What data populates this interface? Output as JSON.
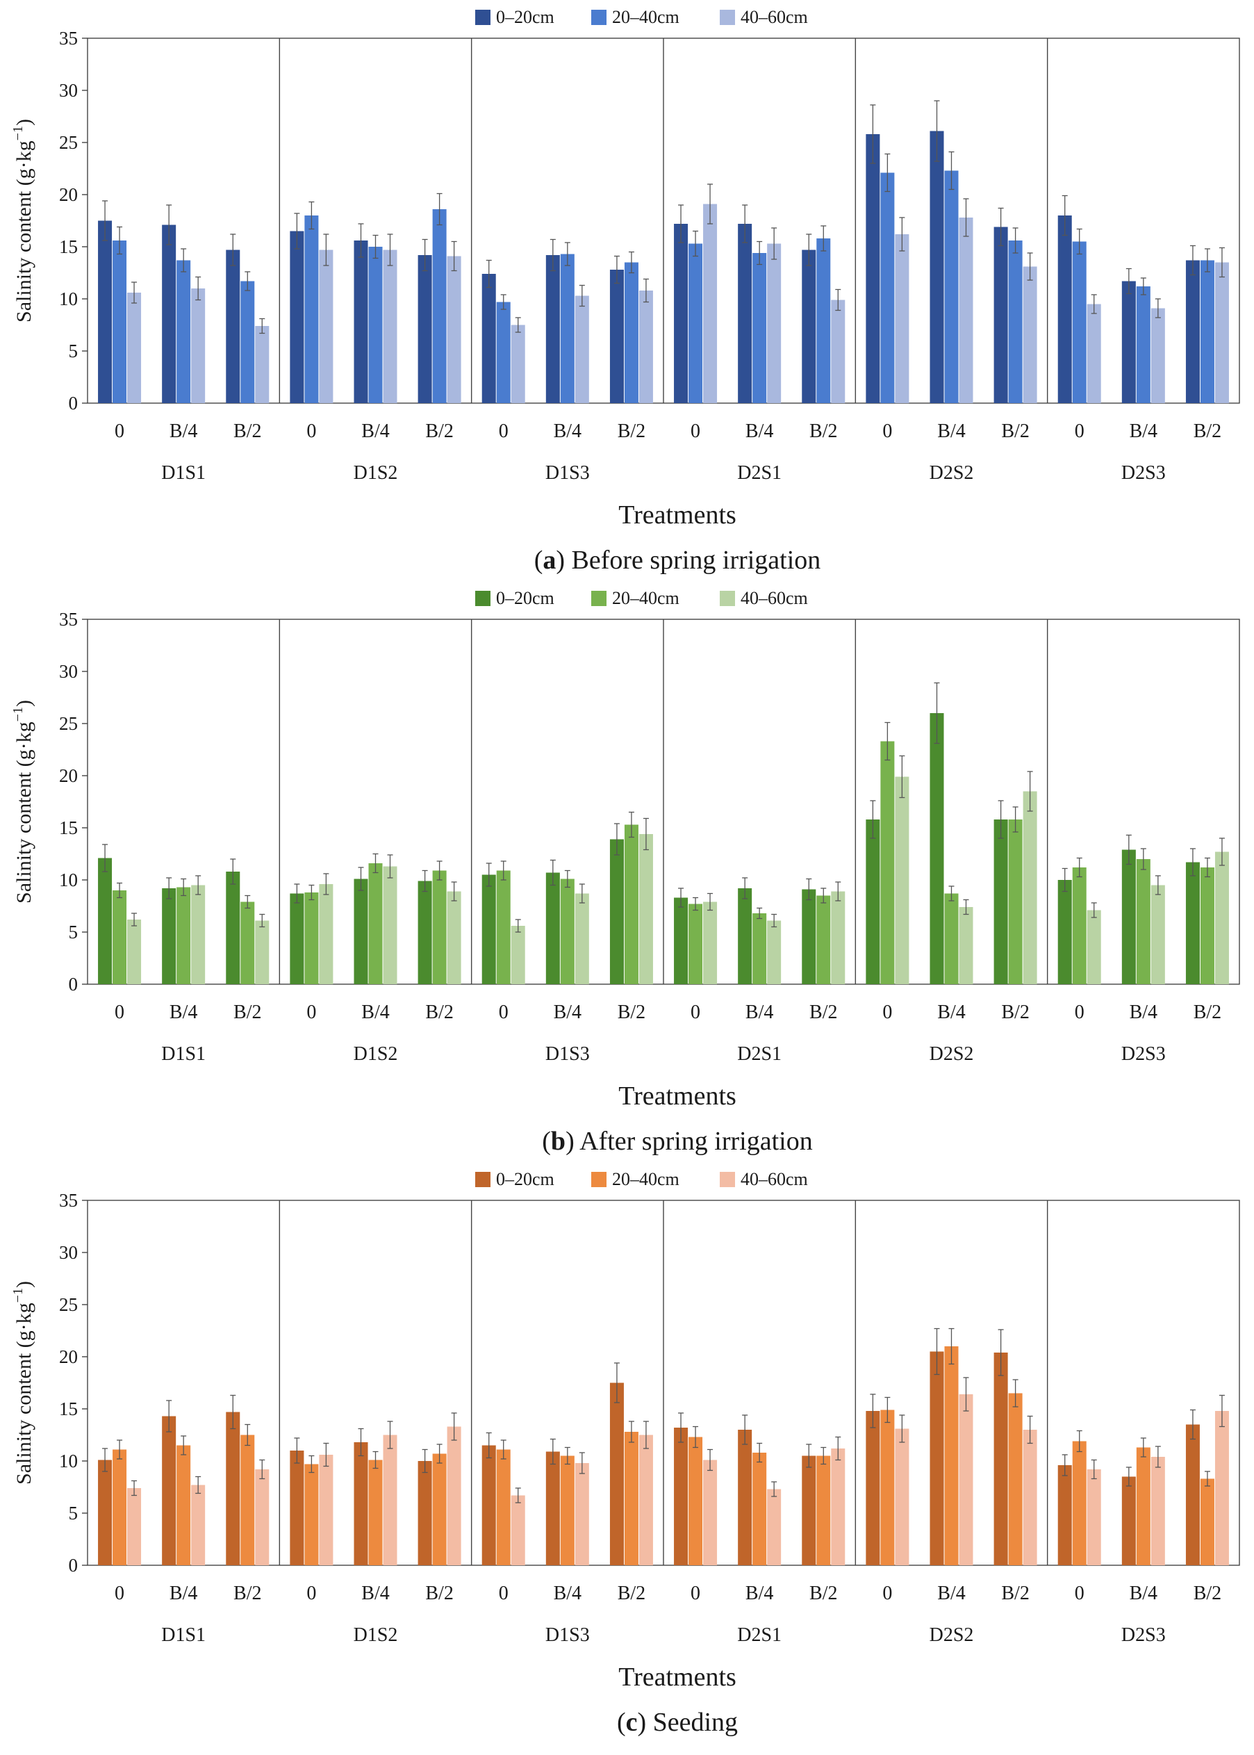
{
  "chart_data": [
    {
      "type": "bar",
      "panel_label": "a",
      "title": "Before spring irrigation",
      "xlabel": "Treatments",
      "ylabel": "Salinity content (g·kg−1)",
      "ylabel_main": "Salinity content (g·kg",
      "ylabel_sup": "−1",
      "ylabel_close": ")",
      "ylim": [
        0,
        35
      ],
      "yticks": [
        0,
        5,
        10,
        15,
        20,
        25,
        30,
        35
      ],
      "groups": [
        "D1S1",
        "D1S2",
        "D1S3",
        "D2S1",
        "D2S2",
        "D2S3"
      ],
      "subcategories": [
        "0",
        "B/4",
        "B/2"
      ],
      "series_colors": [
        "#2f4f93",
        "#4a7ccf",
        "#a9b8de"
      ],
      "series": [
        {
          "name": "0–20cm",
          "values": [
            17.5,
            17.1,
            14.7,
            16.5,
            15.6,
            14.2,
            12.4,
            14.2,
            12.8,
            17.2,
            17.2,
            14.7,
            25.8,
            26.1,
            16.9,
            18.0,
            11.7,
            13.7
          ],
          "errors": [
            1.9,
            1.9,
            1.5,
            1.7,
            1.6,
            1.5,
            1.3,
            1.5,
            1.3,
            1.8,
            1.8,
            1.5,
            2.8,
            2.9,
            1.8,
            1.9,
            1.2,
            1.4
          ]
        },
        {
          "name": "20–40cm",
          "values": [
            15.6,
            13.7,
            11.7,
            18.0,
            15.0,
            18.6,
            9.7,
            14.3,
            13.5,
            15.3,
            14.4,
            15.8,
            22.1,
            22.3,
            15.6,
            15.5,
            11.2,
            13.7
          ],
          "errors": [
            1.3,
            1.1,
            0.9,
            1.3,
            1.1,
            1.5,
            0.7,
            1.1,
            1.0,
            1.2,
            1.1,
            1.2,
            1.8,
            1.8,
            1.2,
            1.2,
            0.8,
            1.1
          ]
        },
        {
          "name": "40–60cm",
          "values": [
            10.6,
            11.0,
            7.4,
            14.7,
            14.7,
            14.1,
            7.5,
            10.3,
            10.8,
            19.1,
            15.3,
            9.9,
            16.2,
            17.8,
            13.1,
            9.5,
            9.1,
            13.5
          ],
          "errors": [
            1.0,
            1.1,
            0.7,
            1.5,
            1.5,
            1.4,
            0.7,
            1.0,
            1.1,
            1.9,
            1.5,
            1.0,
            1.6,
            1.8,
            1.3,
            0.9,
            0.9,
            1.4
          ]
        }
      ]
    },
    {
      "type": "bar",
      "panel_label": "b",
      "title": "After spring irrigation",
      "xlabel": "Treatments",
      "ylabel": "Salinity content (g·kg−1)",
      "ylabel_main": "Salinity content (g·kg",
      "ylabel_sup": "−1",
      "ylabel_close": ")",
      "ylim": [
        0,
        35
      ],
      "yticks": [
        0,
        5,
        10,
        15,
        20,
        25,
        30,
        35
      ],
      "groups": [
        "D1S1",
        "D1S2",
        "D1S3",
        "D2S1",
        "D2S2",
        "D2S3"
      ],
      "subcategories": [
        "0",
        "B/4",
        "B/2"
      ],
      "series_colors": [
        "#4b8b2e",
        "#78b24d",
        "#b9d3a4"
      ],
      "series": [
        {
          "name": "0–20cm",
          "values": [
            12.1,
            9.2,
            10.8,
            8.7,
            10.1,
            9.9,
            10.5,
            10.7,
            13.9,
            8.3,
            9.2,
            9.1,
            15.8,
            26.0,
            15.8,
            10.0,
            12.9,
            11.7
          ],
          "errors": [
            1.3,
            1.0,
            1.2,
            0.9,
            1.1,
            1.0,
            1.1,
            1.2,
            1.5,
            0.9,
            1.0,
            1.0,
            1.8,
            2.9,
            1.8,
            1.1,
            1.4,
            1.3
          ]
        },
        {
          "name": "20–40cm",
          "values": [
            9.0,
            9.3,
            7.9,
            8.8,
            11.6,
            10.9,
            10.9,
            10.1,
            15.3,
            7.7,
            6.8,
            8.5,
            23.3,
            8.7,
            15.8,
            11.2,
            12.0,
            11.2
          ],
          "errors": [
            0.7,
            0.8,
            0.6,
            0.7,
            0.9,
            0.9,
            0.9,
            0.8,
            1.2,
            0.6,
            0.5,
            0.7,
            1.8,
            0.7,
            1.2,
            0.9,
            1.0,
            0.9
          ]
        },
        {
          "name": "40–60cm",
          "values": [
            6.2,
            9.5,
            6.1,
            9.6,
            11.3,
            8.9,
            5.6,
            8.7,
            14.4,
            7.9,
            6.1,
            8.9,
            19.9,
            7.4,
            18.5,
            7.1,
            9.5,
            12.7
          ],
          "errors": [
            0.6,
            0.9,
            0.6,
            1.0,
            1.1,
            0.9,
            0.6,
            0.9,
            1.5,
            0.8,
            0.6,
            0.9,
            2.0,
            0.7,
            1.9,
            0.7,
            0.9,
            1.3
          ]
        }
      ]
    },
    {
      "type": "bar",
      "panel_label": "c",
      "title": "Seeding",
      "xlabel": "Treatments",
      "ylabel": "Salinity content (g·kg−1)",
      "ylabel_main": "Salinity content (g·kg",
      "ylabel_sup": "−1",
      "ylabel_close": ")",
      "ylim": [
        0,
        35
      ],
      "yticks": [
        0,
        5,
        10,
        15,
        20,
        25,
        30,
        35
      ],
      "groups": [
        "D1S1",
        "D1S2",
        "D1S3",
        "D2S1",
        "D2S2",
        "D2S3"
      ],
      "subcategories": [
        "0",
        "B/4",
        "B/2"
      ],
      "series_colors": [
        "#c0652a",
        "#ed8a3f",
        "#f3bca4"
      ],
      "series": [
        {
          "name": "0–20cm",
          "values": [
            10.1,
            14.3,
            14.7,
            11.0,
            11.8,
            10.0,
            11.5,
            10.9,
            17.5,
            13.2,
            13.0,
            10.5,
            14.8,
            20.5,
            20.4,
            9.6,
            8.5,
            13.5
          ],
          "errors": [
            1.1,
            1.5,
            1.6,
            1.2,
            1.3,
            1.1,
            1.2,
            1.2,
            1.9,
            1.4,
            1.4,
            1.1,
            1.6,
            2.2,
            2.2,
            1.0,
            0.9,
            1.4
          ]
        },
        {
          "name": "20–40cm",
          "values": [
            11.1,
            11.5,
            12.5,
            9.7,
            10.1,
            10.7,
            11.1,
            10.5,
            12.8,
            12.3,
            10.8,
            10.5,
            14.9,
            21.0,
            16.5,
            11.9,
            11.3,
            8.3
          ],
          "errors": [
            0.9,
            0.9,
            1.0,
            0.8,
            0.8,
            0.9,
            0.9,
            0.8,
            1.0,
            1.0,
            0.9,
            0.8,
            1.2,
            1.7,
            1.3,
            1.0,
            0.9,
            0.7
          ]
        },
        {
          "name": "40–60cm",
          "values": [
            7.4,
            7.7,
            9.2,
            10.6,
            12.5,
            13.3,
            6.7,
            9.8,
            12.5,
            10.1,
            7.3,
            11.2,
            13.1,
            16.4,
            13.0,
            9.2,
            10.4,
            14.8
          ],
          "errors": [
            0.7,
            0.8,
            0.9,
            1.1,
            1.3,
            1.3,
            0.7,
            1.0,
            1.3,
            1.0,
            0.7,
            1.1,
            1.3,
            1.6,
            1.3,
            0.9,
            1.0,
            1.5
          ]
        }
      ]
    }
  ]
}
